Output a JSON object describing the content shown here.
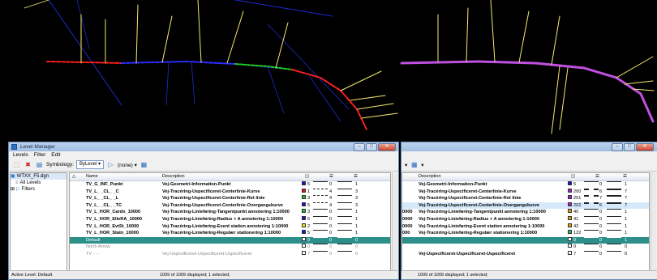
{
  "left_window": {
    "title": "Level Manager",
    "menu": [
      "Levels",
      "Filter",
      "Edit"
    ],
    "symbology_label": "Symbology:",
    "symbology_value": "ByLevel",
    "filter_value": "(none)",
    "tree": [
      {
        "label": "WTXX_F5.dgn",
        "selected": true
      },
      {
        "label": "All Levels"
      },
      {
        "label": "Filters"
      }
    ],
    "headers": {
      "name": "Name",
      "description": "Description"
    },
    "status_left": "Active Level: Default",
    "status_right": "1009 of 1009 displayed; 1 selected;"
  },
  "right_window": {
    "status_right": "1009 of 1009 displayed; 1 selected;",
    "headers": {
      "description": "Description"
    }
  },
  "levels": [
    {
      "name": "TV_G_INF_Punkt",
      "description": "Vej-Geometri-Information-Punkt",
      "color": "#1410d8",
      "color_no": "5",
      "style": "0",
      "weight": "1",
      "bold": true
    },
    {
      "name": "TV_L_ _CL_ _C",
      "description": "Vej-Tracéring-Uspecificeret-Centerlinie-Kurve",
      "color": "#d8101c",
      "color_no": "1",
      "style": "4",
      "weight": "3",
      "bold": true
    },
    {
      "name": "TV_L_ _CL_ _L",
      "description": "Vej-Tracéring-Uspecificeret-Centerlinie-Ret linie",
      "color": "#18c020",
      "color_no": "3",
      "style": "4",
      "weight": "3",
      "bold": true
    },
    {
      "name": "TV_L_ _CL_ _TC",
      "description": "Vej-Tracéring-Uspecificeret-Centerlinie-Overgangskurve",
      "color": "#1410d8",
      "color_no": "5",
      "style": "4",
      "weight": "3",
      "bold": true
    },
    {
      "name": "TV_L_HOR_Cardn_10000",
      "description": "Vej-Tracéring-Linieføring-Tangentpunkt annotering 1:10000",
      "color": "#18c020",
      "color_no": "3",
      "style": "0",
      "weight": "1",
      "bold": true
    },
    {
      "name": "TV_L_HOR_ElleRA_10000",
      "description": "Vej-Tracéring-Linieføring-Radius + A annotering 1:10000",
      "color": "#1410d8",
      "color_no": "5",
      "style": "0",
      "weight": "1",
      "bold": true
    },
    {
      "name": "TV_L_HOR_EvtSt_10000",
      "description": "Vej-Tracéring-Linieføring-Event station annotering 1:10000",
      "color": "#f0e010",
      "color_no": "2",
      "style": "0",
      "weight": "1",
      "bold": true
    },
    {
      "name": "TV_L_HOR_Statn_10000",
      "description": "Vej-Tracéring-Linieføring-Regulær stationering 1:10000",
      "color": "#1410d8",
      "color_no": "5",
      "style": "0",
      "weight": "1",
      "bold": true
    },
    {
      "name": "Default",
      "description": "",
      "color": "#ffffff",
      "color_no": "0",
      "style": "0",
      "weight": "0",
      "selected": true
    },
    {
      "name": "North Arrow",
      "description": "",
      "color": "#ffffff",
      "color_no": "0",
      "style": "0",
      "weight": "0",
      "muted": true
    },
    {
      "name": "TV - - -",
      "description": "Vej-Uspecificeret-Uspecificeret-Uspecificeret",
      "color": "#ffffff",
      "color_no": "7",
      "style": "0",
      "weight": "0",
      "muted": true
    }
  ],
  "right_levels": [
    {
      "prefix": "",
      "description": "Vej-Geometri-Information-Punkt",
      "color": "#1410d8",
      "color_no": "5",
      "style": "0",
      "weight": "1"
    },
    {
      "prefix": "",
      "description": "Vej-Tracéring-Uspecificeret-Centerlinie-Kurve",
      "color": "#a020c8",
      "color_no": "200",
      "style": "6",
      "weight": "7"
    },
    {
      "prefix": "",
      "description": "Vej-Tracéring-Uspecificeret-Centerlinie-Ret linie",
      "color": "#a020c8",
      "color_no": "201",
      "style": "7",
      "weight": "7"
    },
    {
      "prefix": "",
      "description": "Vej-Tracéring-Uspecificeret-Centerlinie-Overgangskurve",
      "color": "#a020c8",
      "color_no": "202",
      "style": "6",
      "weight": "7",
      "highlight": true
    },
    {
      "prefix": "0000",
      "description": "Vej-Tracéring-Linieføring-Tangentpunkt annotering 1:10000",
      "color": "#e0a000",
      "color_no": "40",
      "style": "0",
      "weight": "1"
    },
    {
      "prefix": "0000",
      "description": "Vej-Tracéring-Linieføring-Radius + A annotering 1:10000",
      "color": "#e0a000",
      "color_no": "41",
      "style": "0",
      "weight": "1"
    },
    {
      "prefix": "0000",
      "description": "Vej-Tracéring-Linieføring-Event station annotering 1:10000",
      "color": "#e0a000",
      "color_no": "42",
      "style": "0",
      "weight": "1"
    },
    {
      "prefix": "000",
      "description": "Vej-Tracéring-Linieføring-Regulær stationering 1:10000",
      "color": "#20c060",
      "color_no": "122",
      "style": "0",
      "weight": "1"
    },
    {
      "prefix": "",
      "description": "",
      "color": "#ffffff",
      "color_no": "0",
      "style": "0",
      "weight": "1",
      "selected": true
    },
    {
      "prefix": "",
      "description": "",
      "color": "#ffffff",
      "color_no": "0",
      "style": "0",
      "weight": "0"
    },
    {
      "prefix": "",
      "description": "Vej-Uspecificeret-Uspecificeret-Uspecificeret",
      "color": "#ffffff",
      "color_no": "7",
      "style": "0",
      "weight": "0"
    }
  ]
}
